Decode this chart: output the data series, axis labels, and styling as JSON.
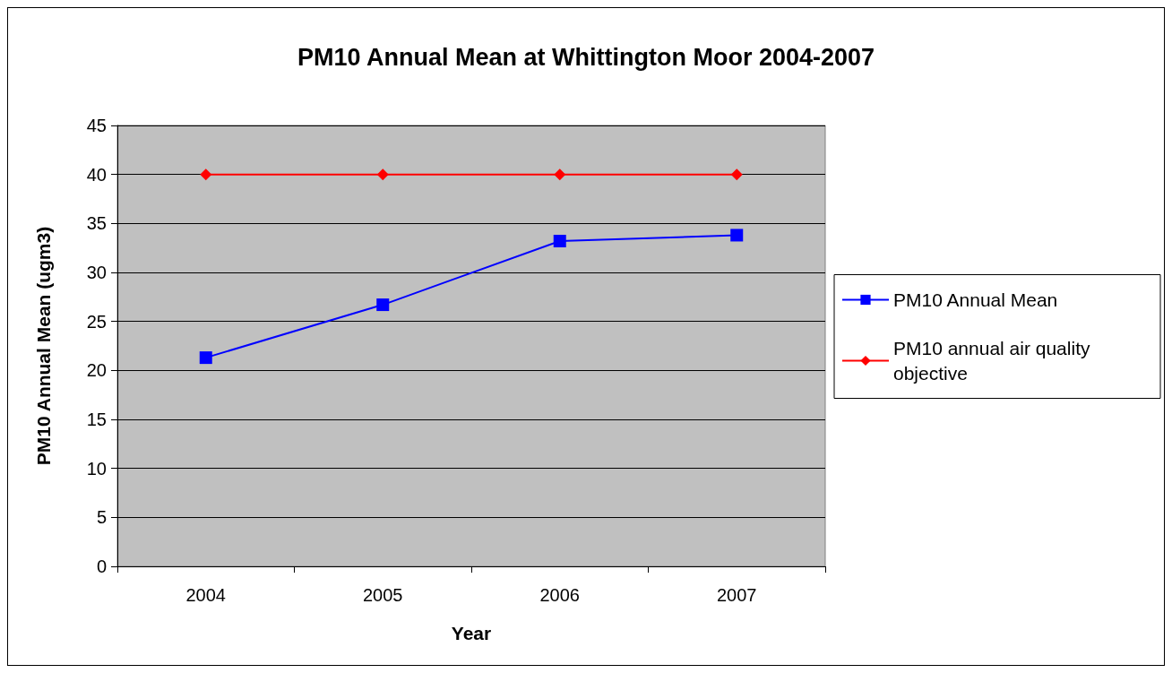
{
  "chart_data": {
    "type": "line",
    "title": "PM10 Annual Mean at Whittington Moor 2004-2007",
    "xlabel": "Year",
    "ylabel": "PM10 Annual Mean (ugm3)",
    "categories": [
      "2004",
      "2005",
      "2006",
      "2007"
    ],
    "series": [
      {
        "name": "PM10 Annual Mean",
        "color": "#0000ff",
        "marker": "square",
        "values": [
          21.3,
          26.7,
          33.2,
          33.8
        ]
      },
      {
        "name": "PM10 annual air quality objective",
        "color": "#ff0000",
        "marker": "diamond",
        "values": [
          40,
          40,
          40,
          40
        ]
      }
    ],
    "ylim": [
      0,
      45
    ],
    "yticks": [
      0,
      5,
      10,
      15,
      20,
      25,
      30,
      35,
      40,
      45
    ],
    "grid": "y",
    "legend": "right",
    "line_style": "solid"
  }
}
